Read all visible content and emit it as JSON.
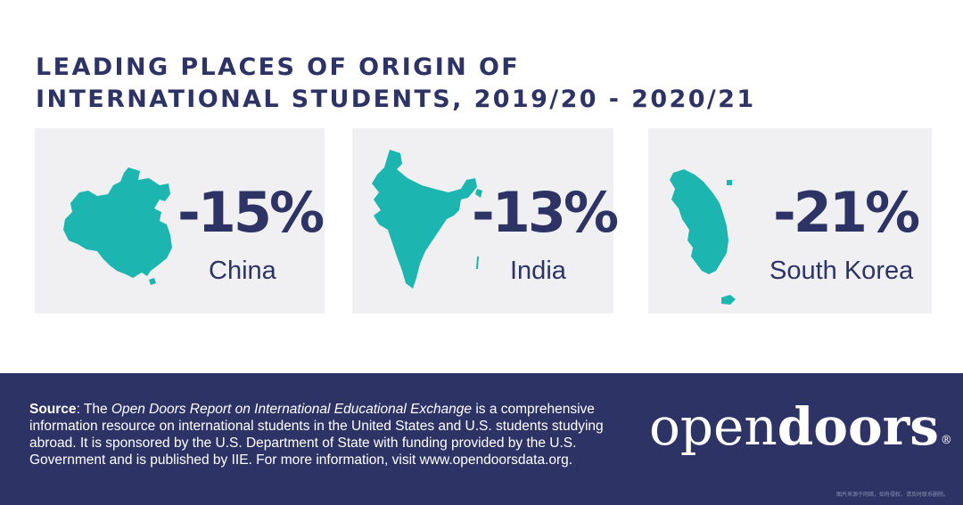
{
  "title": {
    "line1": "LEADING PLACES OF ORIGIN OF",
    "line2": "INTERNATIONAL STUDENTS, 2019/20 - 2020/21"
  },
  "cards": [
    {
      "country": "China",
      "change": "-15%",
      "icon": "china-map-icon"
    },
    {
      "country": "India",
      "change": "-13%",
      "icon": "india-map-icon"
    },
    {
      "country": "South Korea",
      "change": "-21%",
      "icon": "south-korea-map-icon"
    }
  ],
  "colors": {
    "navy": "#2d3465",
    "teal": "#1cb5b0",
    "card_bg": "#f0f0f2"
  },
  "footer": {
    "source_label": "Source",
    "source_intro": ": The ",
    "report_name": "Open Doors Report on International Educational Exchange",
    "source_text": " is a comprehensive information resource on international students in the United States and U.S. students studying abroad. It is sponsored by the U.S. Department of State with funding provided by the U.S. Government and is published by IIE. For more information, visit www.opendoorsdata.org.",
    "logo_light": "open",
    "logo_bold": "doors",
    "logo_mark": "®",
    "watermark": "图片来源于网络，如有侵权，请及时联系删除。"
  }
}
